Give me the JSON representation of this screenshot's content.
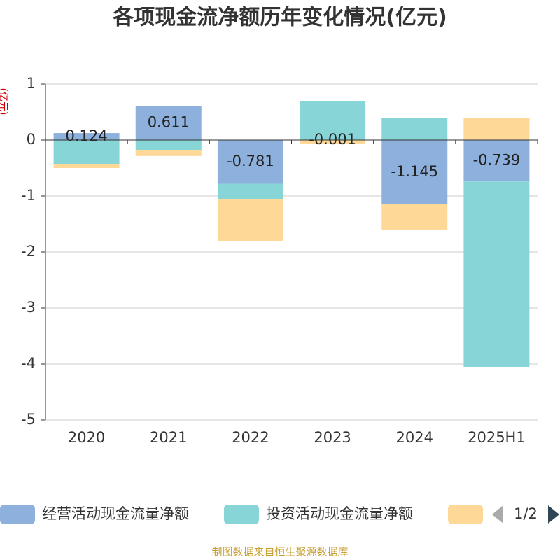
{
  "chart_data": {
    "type": "bar",
    "stacked": true,
    "title": "各项现金流净额历年变化情况(亿元)",
    "y_label": "(亿元)",
    "categories": [
      "2020",
      "2021",
      "2022",
      "2023",
      "2024",
      "2025H1"
    ],
    "series": [
      {
        "name": "经营活动现金流量净额",
        "color": "#8eb0dc",
        "values": [
          0.124,
          0.611,
          -0.781,
          -0.001,
          -1.145,
          -0.739
        ],
        "labels": true
      },
      {
        "name": "投资活动现金流量净额",
        "color": "#88d5d8",
        "values": [
          -0.425,
          -0.175,
          -0.27,
          0.7,
          0.4,
          -3.32
        ]
      },
      {
        "color": "#fed897",
        "values": [
          -0.075,
          -0.11,
          -0.76,
          -0.07,
          -0.46,
          0.4
        ]
      }
    ],
    "ylim": [
      -5,
      1
    ],
    "yticks": [
      1,
      0,
      -1,
      -2,
      -3,
      -4,
      -5
    ],
    "grid": true,
    "legend_pager": "1/2",
    "source": "制图数据来自恒生聚源数据库"
  }
}
